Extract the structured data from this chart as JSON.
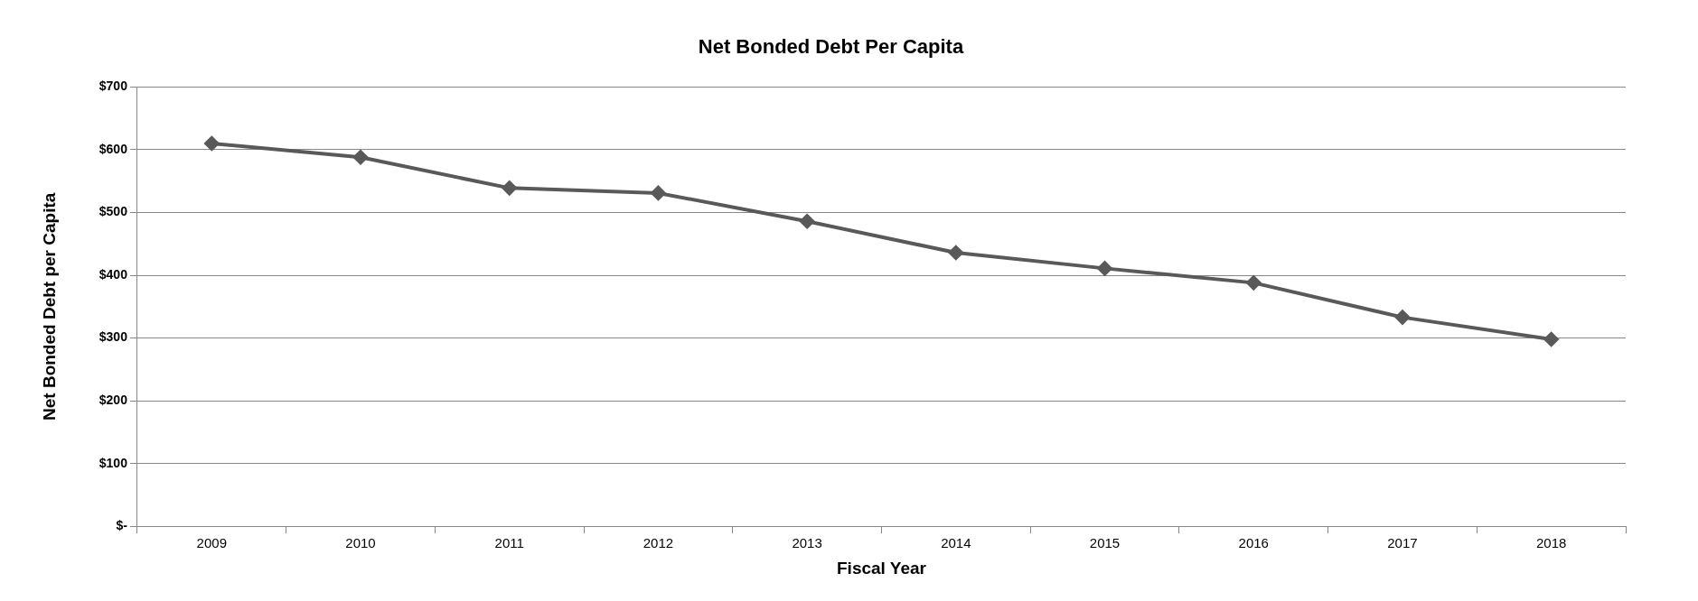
{
  "chart_data": {
    "type": "line",
    "title": "Net Bonded Debt Per Capita",
    "xlabel": "Fiscal Year",
    "ylabel": "Net Bonded Debt per Capita",
    "categories": [
      "2009",
      "2010",
      "2011",
      "2012",
      "2013",
      "2014",
      "2015",
      "2016",
      "2017",
      "2018"
    ],
    "series": [
      {
        "color": "#595959",
        "values": [
          610,
          588,
          539,
          531,
          486,
          436,
          411,
          388,
          333,
          298
        ]
      }
    ],
    "ylim": [
      0,
      700
    ],
    "yticks": [
      {
        "value": 0,
        "label": "$-"
      },
      {
        "value": 100,
        "label": "$100"
      },
      {
        "value": 200,
        "label": "$200"
      },
      {
        "value": 300,
        "label": "$300"
      },
      {
        "value": 400,
        "label": "$400"
      },
      {
        "value": 500,
        "label": "$500"
      },
      {
        "value": 600,
        "label": "$600"
      },
      {
        "value": 700,
        "label": "$700"
      }
    ],
    "grid": "y",
    "legend": false,
    "marker": "diamond",
    "line_style": "solid"
  }
}
